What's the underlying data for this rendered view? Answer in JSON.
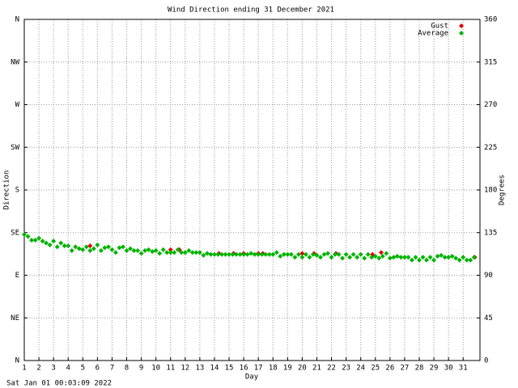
{
  "chart_data": {
    "type": "scatter",
    "title": "Wind Direction ending 31 December 2021",
    "ylabel": "Direction",
    "y2label": "Degrees",
    "xlabel": "Day",
    "footer": "Sat Jan 01 00:03:09 2022",
    "xlim": [
      1,
      32.15
    ],
    "xticks": [
      1,
      2,
      3,
      4,
      5,
      6,
      7,
      8,
      9,
      10,
      11,
      12,
      13,
      14,
      15,
      16,
      17,
      18,
      19,
      20,
      21,
      22,
      23,
      24,
      25,
      26,
      27,
      28,
      29,
      30,
      31
    ],
    "ylim": [
      0,
      360
    ],
    "yticks": [
      {
        "value": 0,
        "label": "N"
      },
      {
        "value": 45,
        "label": "NE"
      },
      {
        "value": 90,
        "label": "E"
      },
      {
        "value": 135,
        "label": "SE"
      },
      {
        "value": 180,
        "label": "S"
      },
      {
        "value": 225,
        "label": "SW"
      },
      {
        "value": 270,
        "label": "W"
      },
      {
        "value": 315,
        "label": "NW"
      },
      {
        "value": 360,
        "label": "N"
      }
    ],
    "y2lim": [
      0,
      360
    ],
    "y2ticks": [
      0,
      45,
      90,
      135,
      180,
      225,
      270,
      315,
      360
    ],
    "grid": true,
    "legend": "upper right",
    "series": [
      {
        "name": "Gust",
        "color": "#e00000",
        "x": [
          5.5,
          11,
          11.6,
          14.3,
          15.3,
          16,
          17,
          17.3,
          20,
          20.8,
          22.3,
          24.8,
          25.4,
          31.8
        ],
        "values": [
          121,
          117,
          117,
          113,
          113,
          113,
          113,
          113,
          113,
          113,
          113,
          112,
          114,
          109
        ]
      },
      {
        "name": "Average",
        "color": "#00b400",
        "x": [
          1,
          1.25,
          1.5,
          1.75,
          2,
          2.25,
          2.5,
          2.75,
          3,
          3.25,
          3.5,
          3.75,
          4,
          4.25,
          4.5,
          4.75,
          5,
          5.25,
          5.5,
          5.75,
          6,
          6.25,
          6.5,
          6.75,
          7,
          7.25,
          7.5,
          7.75,
          8,
          8.25,
          8.5,
          8.75,
          9,
          9.25,
          9.5,
          9.75,
          10,
          10.25,
          10.5,
          10.75,
          11,
          11.25,
          11.5,
          11.75,
          12,
          12.25,
          12.5,
          12.75,
          13,
          13.25,
          13.5,
          13.75,
          14,
          14.25,
          14.5,
          14.75,
          15,
          15.25,
          15.5,
          15.75,
          16,
          16.25,
          16.5,
          16.75,
          17,
          17.25,
          17.5,
          17.75,
          18,
          18.25,
          18.5,
          18.75,
          19,
          19.25,
          19.5,
          19.75,
          20,
          20.25,
          20.5,
          20.75,
          21,
          21.25,
          21.5,
          21.75,
          22,
          22.25,
          22.5,
          22.75,
          23,
          23.25,
          23.5,
          23.75,
          24,
          24.25,
          24.5,
          24.75,
          25,
          25.25,
          25.5,
          25.75,
          26,
          26.25,
          26.5,
          26.75,
          27,
          27.25,
          27.5,
          27.75,
          28,
          28.25,
          28.5,
          28.75,
          29,
          29.25,
          29.5,
          29.75,
          30,
          30.25,
          30.5,
          30.75,
          31,
          31.25,
          31.5,
          31.75
        ],
        "values": [
          133,
          131,
          127,
          127,
          129,
          126,
          124,
          122,
          126,
          120,
          124,
          121,
          121,
          116,
          120,
          118,
          117,
          120,
          116,
          118,
          122,
          116,
          119,
          120,
          117,
          114,
          119,
          120,
          116,
          118,
          116,
          116,
          113,
          116,
          117,
          115,
          116,
          113,
          117,
          114,
          114,
          114,
          117,
          114,
          114,
          116,
          114,
          114,
          114,
          111,
          113,
          112,
          112,
          112,
          112,
          112,
          112,
          112,
          112,
          112,
          112,
          112,
          113,
          112,
          112,
          112,
          112,
          112,
          112,
          114,
          110,
          112,
          112,
          112,
          109,
          112,
          109,
          112,
          109,
          112,
          111,
          109,
          112,
          113,
          109,
          112,
          112,
          108,
          112,
          109,
          112,
          109,
          112,
          108,
          112,
          109,
          110,
          108,
          110,
          113,
          108,
          109,
          110,
          109,
          109,
          109,
          106,
          109,
          106,
          109,
          106,
          109,
          106,
          110,
          111,
          109,
          109,
          110,
          108,
          106,
          109,
          106,
          106,
          109
        ]
      }
    ]
  }
}
